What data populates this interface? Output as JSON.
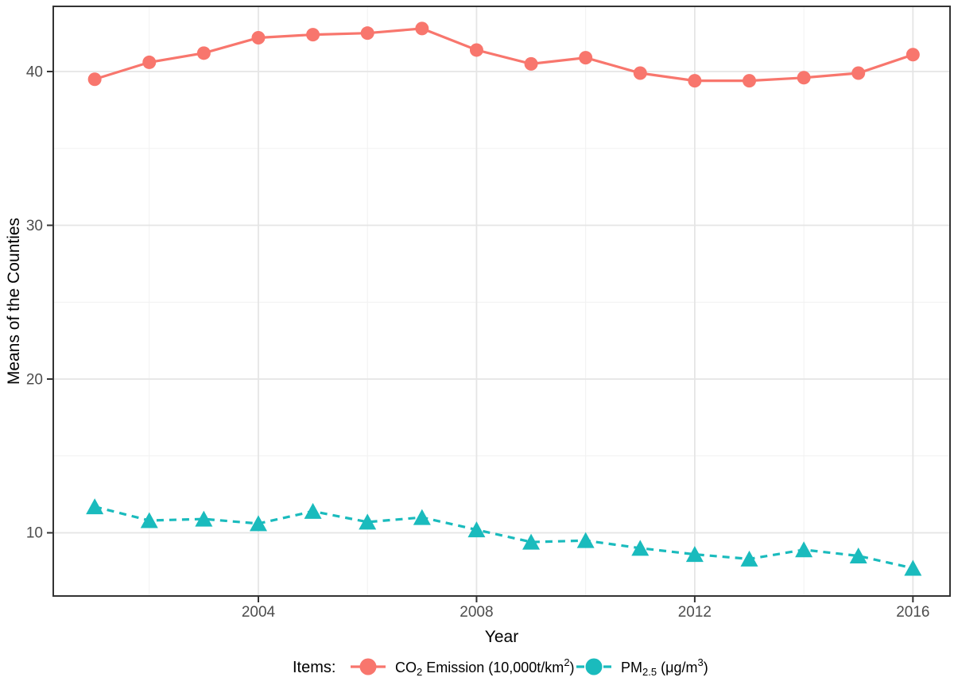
{
  "figure": {
    "background": "#FFFFFF"
  },
  "chart_data": {
    "type": "line",
    "title": "",
    "xlabel": "Year",
    "ylabel": "Means of the Counties",
    "x": [
      2001,
      2002,
      2003,
      2004,
      2005,
      2006,
      2007,
      2008,
      2009,
      2010,
      2011,
      2012,
      2013,
      2014,
      2015,
      2016
    ],
    "series": [
      {
        "id": "co2-emission",
        "name": "CO2 Emission (10,000t/km2)",
        "color": "#F8766D",
        "line_style": "solid",
        "marker": "circle",
        "values": [
          39.5,
          40.6,
          41.2,
          42.2,
          42.4,
          42.5,
          42.8,
          41.4,
          40.5,
          40.9,
          39.9,
          39.4,
          39.4,
          39.6,
          39.9,
          41.1
        ]
      },
      {
        "id": "pm25",
        "name": "PM2.5 (ug/m3)",
        "color": "#1ABBBD",
        "line_style": "dashed",
        "marker": "triangle",
        "values": [
          11.7,
          10.8,
          10.9,
          10.6,
          11.4,
          10.7,
          11.0,
          10.2,
          9.4,
          9.5,
          9.0,
          8.6,
          8.3,
          8.9,
          8.5,
          7.7
        ]
      }
    ],
    "x_ticks": [
      2004,
      2008,
      2012,
      2016
    ],
    "x_minor_gridlines": [
      2002,
      2006,
      2010,
      2014
    ],
    "y_ticks": [
      10,
      20,
      30,
      40
    ],
    "y_minor_gridlines": [
      15,
      25,
      35
    ],
    "xlim": [
      2000.24,
      2016.68
    ],
    "ylim": [
      5.89,
      44.24
    ],
    "grid": "major+minor",
    "legend_position": "bottom",
    "legend": {
      "title": "Items:",
      "items": [
        {
          "series": "co2-emission",
          "rich_label": [
            {
              "t": "CO",
              "s": "n"
            },
            {
              "t": "2",
              "s": "sub"
            },
            {
              "t": " Emission (10,000t/km",
              "s": "n"
            },
            {
              "t": "2",
              "s": "sup"
            },
            {
              "t": ")",
              "s": "n"
            }
          ]
        },
        {
          "series": "pm25",
          "rich_label": [
            {
              "t": "PM",
              "s": "n"
            },
            {
              "t": "2.5",
              "s": "sub"
            },
            {
              "t": " (μg/m",
              "s": "n"
            },
            {
              "t": "3",
              "s": "sup"
            },
            {
              "t": ")",
              "s": "n"
            }
          ]
        }
      ]
    },
    "style": {
      "tick_label_color": "#4D4D4D",
      "title_color": "#000000",
      "panel_border_color": "#333333",
      "grid_major_color": "#E5E5E5",
      "grid_minor_color": "#F1F1F1",
      "panel_background": "#FFFFFF"
    }
  }
}
